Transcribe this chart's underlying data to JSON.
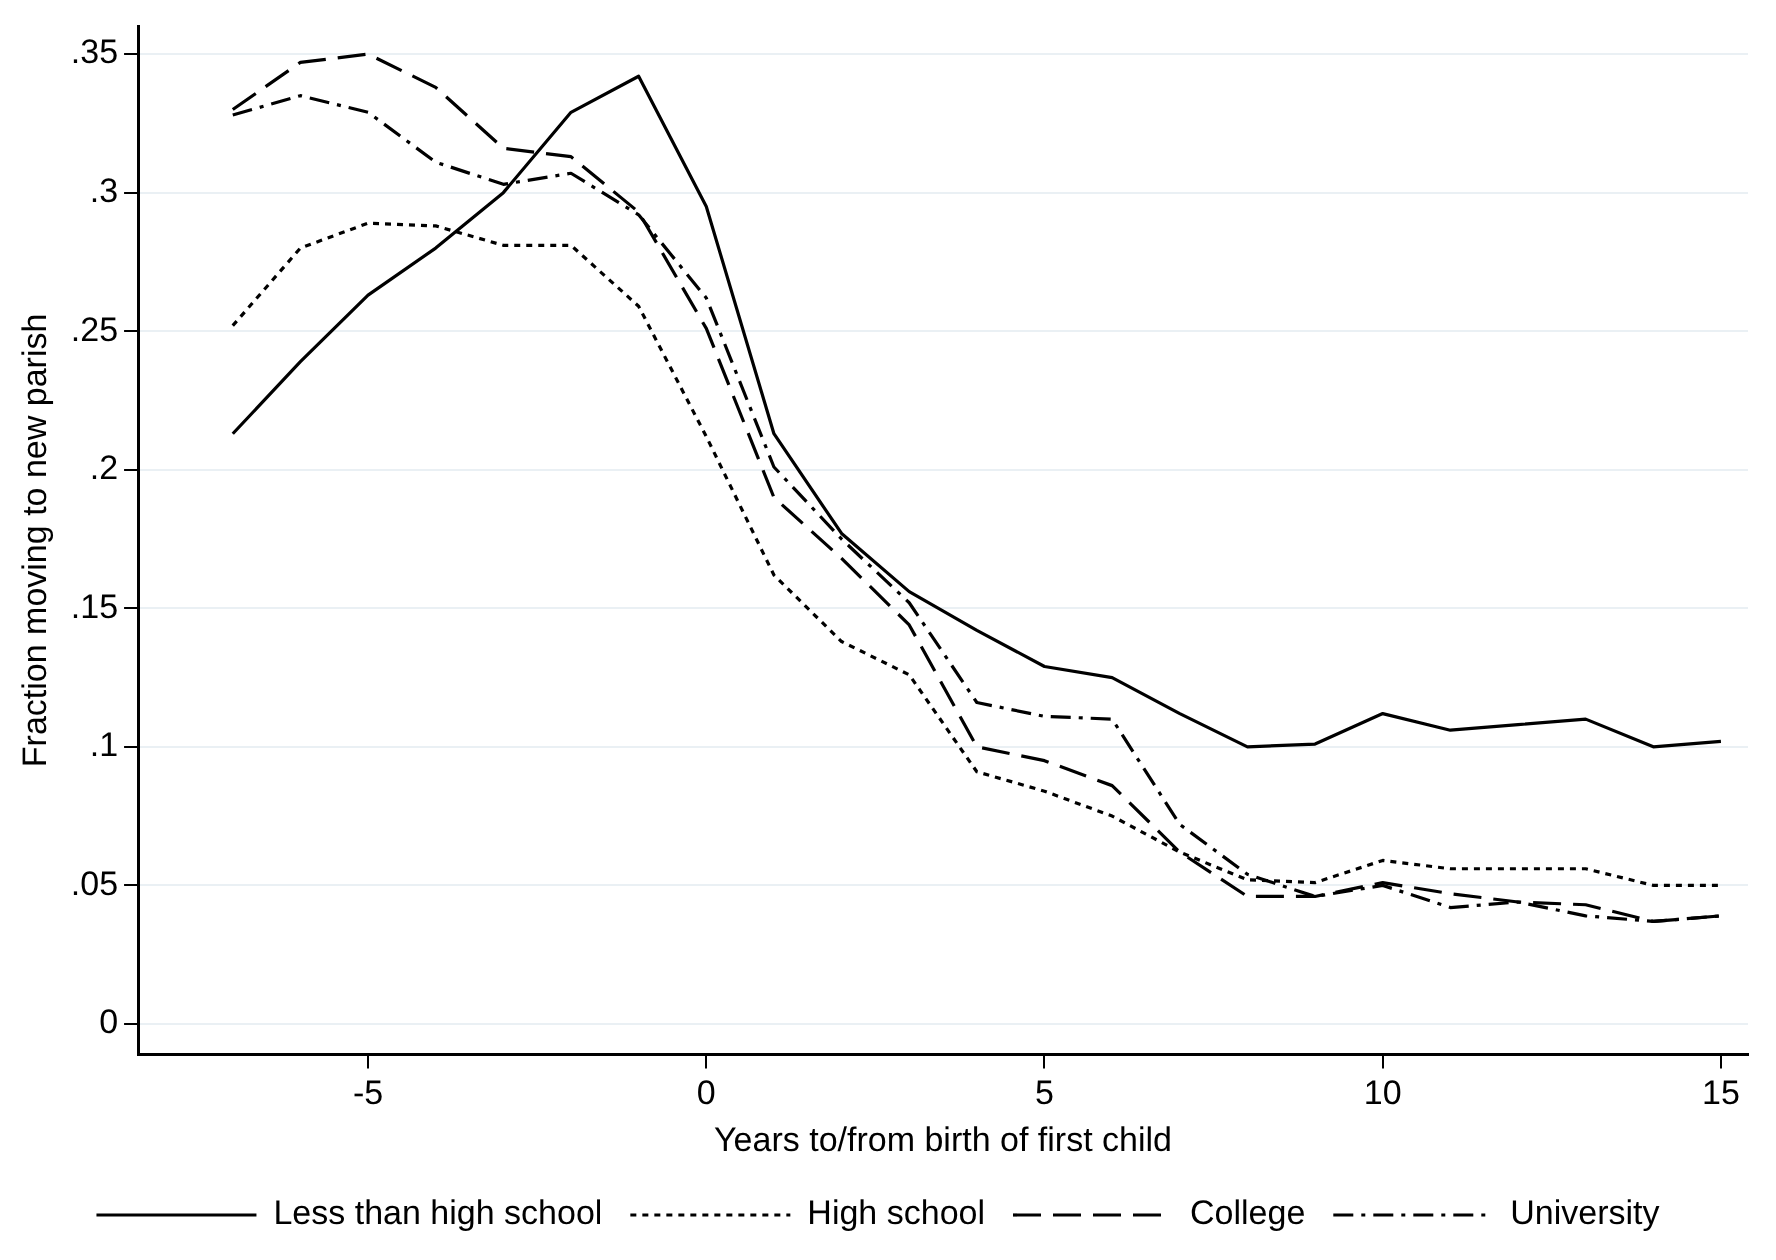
{
  "chart_data": {
    "type": "line",
    "xlabel": "Years to/from birth of first child",
    "ylabel": "Fraction moving to new parish",
    "x": [
      -7,
      -6,
      -5,
      -4,
      -3,
      -2,
      -1,
      0,
      1,
      2,
      3,
      4,
      5,
      6,
      7,
      8,
      9,
      10,
      11,
      12,
      13,
      14,
      15
    ],
    "series": [
      {
        "name": "Less than high school",
        "color": "#000000",
        "line_style": "solid",
        "values": [
          0.213,
          0.239,
          0.263,
          0.28,
          0.3,
          0.329,
          0.342,
          0.295,
          0.213,
          0.177,
          0.156,
          0.142,
          0.129,
          0.125,
          0.112,
          0.1,
          0.101,
          0.112,
          0.106,
          0.108,
          0.11,
          0.1,
          0.102
        ]
      },
      {
        "name": "High school",
        "color": "#000000",
        "line_style": "dotted",
        "values": [
          0.252,
          0.28,
          0.289,
          0.288,
          0.281,
          0.281,
          0.259,
          0.212,
          0.162,
          0.138,
          0.126,
          0.091,
          0.084,
          0.075,
          0.062,
          0.052,
          0.051,
          0.059,
          0.056,
          0.056,
          0.056,
          0.05,
          0.05
        ]
      },
      {
        "name": "College",
        "color": "#000000",
        "line_style": "dashed",
        "values": [
          0.33,
          0.347,
          0.35,
          0.338,
          0.316,
          0.313,
          0.293,
          0.251,
          0.19,
          0.168,
          0.144,
          0.1,
          0.095,
          0.086,
          0.062,
          0.046,
          0.046,
          0.051,
          0.047,
          0.044,
          0.043,
          0.037,
          0.039
        ]
      },
      {
        "name": "University",
        "color": "#000000",
        "line_style": "dashdot",
        "values": [
          0.328,
          0.335,
          0.329,
          0.311,
          0.303,
          0.307,
          0.292,
          0.262,
          0.201,
          0.175,
          0.152,
          0.116,
          0.111,
          0.11,
          0.072,
          0.054,
          0.046,
          0.05,
          0.042,
          0.044,
          0.039,
          0.037,
          0.039
        ]
      }
    ],
    "xlim": [
      -8.4,
      15.4
    ],
    "xticks": [
      -5,
      0,
      5,
      10,
      15
    ],
    "ylim": [
      -0.011,
      0.36
    ],
    "yticks": [
      {
        "value": 0,
        "label": "0"
      },
      {
        "value": 0.05,
        "label": ".05"
      },
      {
        "value": 0.1,
        "label": ".1"
      },
      {
        "value": 0.15,
        "label": ".15"
      },
      {
        "value": 0.2,
        "label": ".2"
      },
      {
        "value": 0.25,
        "label": ".25"
      },
      {
        "value": 0.3,
        "label": ".3"
      },
      {
        "value": 0.35,
        "label": ".35"
      }
    ],
    "grid": "y",
    "legend": "bottom",
    "marker": "none"
  }
}
